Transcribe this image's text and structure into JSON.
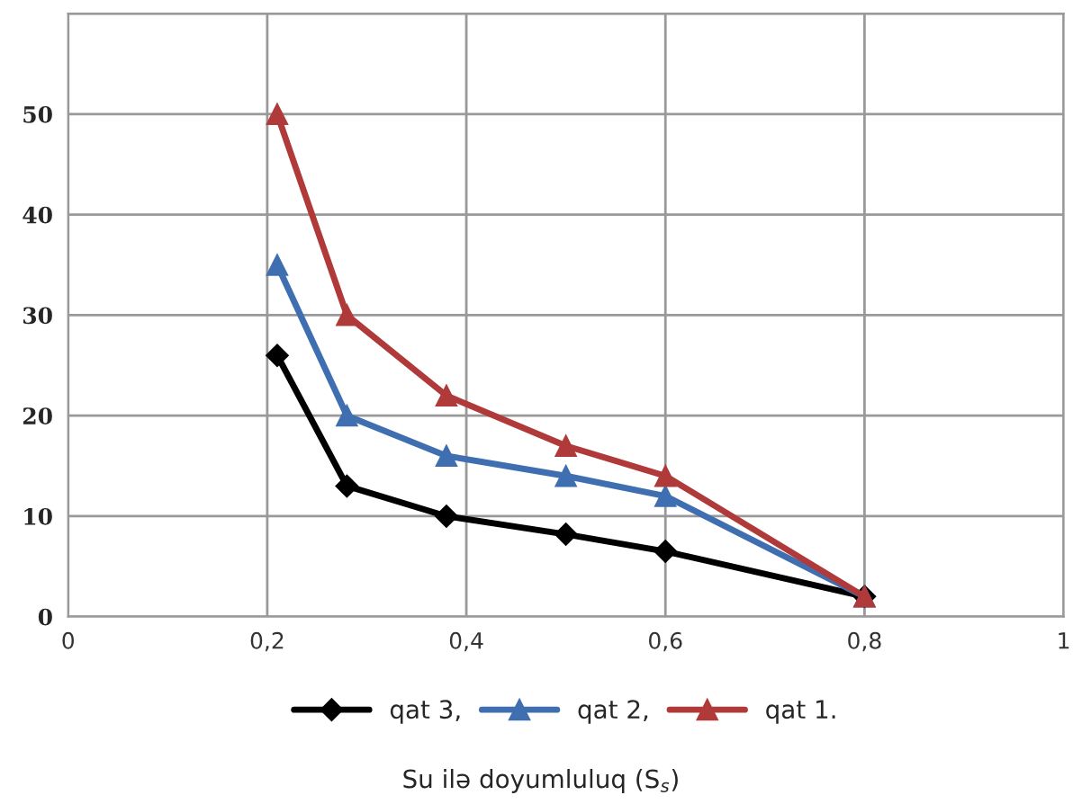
{
  "chart_data": {
    "type": "line",
    "xlabel": "Su ilə doyumluluq (S$_{s}$)",
    "x": [
      0.21,
      0.28,
      0.38,
      0.5,
      0.6,
      0.8
    ],
    "series": [
      {
        "name": "qat 3,",
        "color": "#000000",
        "marker": "diamond",
        "values": [
          26,
          13,
          10,
          8.2,
          6.5,
          2
        ]
      },
      {
        "name": "qat 2,",
        "color": "#3f6fb0",
        "marker": "triangle",
        "values": [
          35,
          20,
          16,
          14,
          12,
          2
        ]
      },
      {
        "name": "qat 1.",
        "color": "#b03a3a",
        "marker": "triangle",
        "values": [
          50,
          30,
          22,
          17,
          14,
          2
        ]
      }
    ],
    "xlim": [
      0,
      1
    ],
    "ylim": [
      0,
      60
    ],
    "xticks": [
      0,
      {
        "value": 0.2,
        "label": "0,2"
      },
      {
        "value": 0.4,
        "label": "0,4"
      },
      {
        "value": 0.6,
        "label": "0,6"
      },
      {
        "value": 0.8,
        "label": "0,8"
      },
      1
    ],
    "yticks": [
      0,
      10,
      20,
      30,
      40,
      50,
      {
        "value": 60,
        "label": null
      }
    ],
    "grid": true,
    "legend": "bottom",
    "line_style": "solid"
  }
}
